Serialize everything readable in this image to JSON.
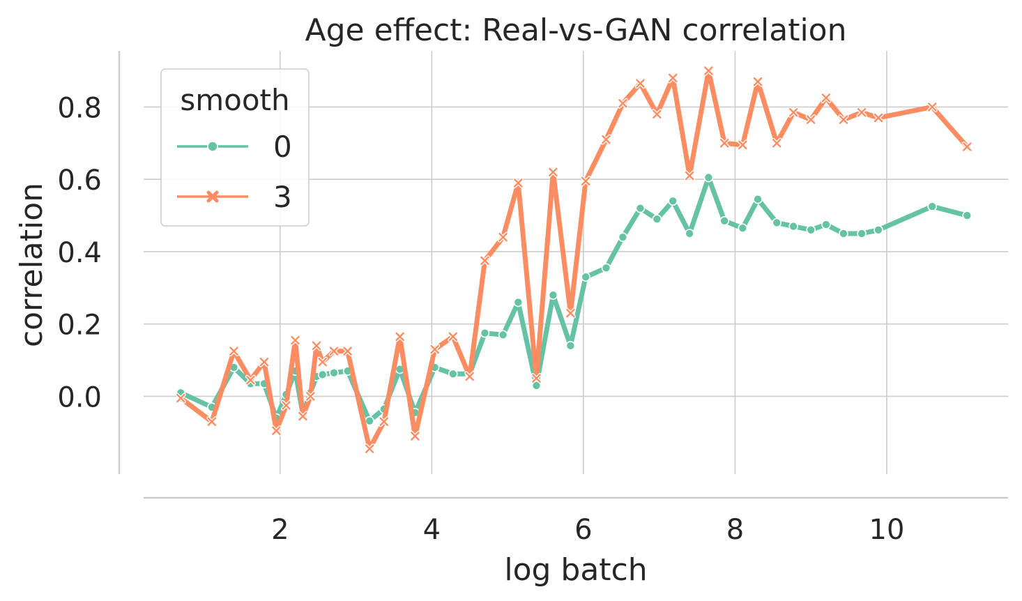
{
  "chart_data": {
    "type": "line",
    "title": "Age effect: Real-vs-GAN correlation",
    "xlabel": "log batch",
    "ylabel": "correlation",
    "xlim": [
      0.2,
      11.6
    ],
    "ylim": [
      -0.215,
      0.955
    ],
    "xticks": [
      2,
      4,
      6,
      8,
      10
    ],
    "yticks": [
      0.0,
      0.2,
      0.4,
      0.6,
      0.8
    ],
    "xtick_labels": [
      "2",
      "4",
      "6",
      "8",
      "10"
    ],
    "ytick_labels": [
      "0.0",
      "0.2",
      "0.4",
      "0.6",
      "0.8"
    ],
    "grid": true,
    "legend": {
      "title": "smooth",
      "placement": "top-left"
    },
    "series": [
      {
        "name": "0",
        "color": "#66c2a5",
        "marker": "circle",
        "x": [
          0.69,
          1.1,
          1.39,
          1.61,
          1.79,
          1.95,
          2.08,
          2.2,
          2.3,
          2.4,
          2.48,
          2.56,
          2.71,
          2.89,
          3.18,
          3.37,
          3.58,
          3.78,
          4.04,
          4.28,
          4.5,
          4.7,
          4.94,
          5.14,
          5.38,
          5.6,
          5.83,
          6.03,
          6.3,
          6.52,
          6.75,
          6.97,
          7.18,
          7.4,
          7.65,
          7.86,
          8.1,
          8.3,
          8.55,
          8.77,
          9.0,
          9.2,
          9.43,
          9.67,
          9.89,
          10.6,
          11.06
        ],
        "y": [
          0.01,
          -0.03,
          0.08,
          0.035,
          0.035,
          -0.06,
          0.005,
          0.07,
          -0.05,
          0.01,
          0.055,
          0.06,
          0.065,
          0.07,
          -0.068,
          -0.035,
          0.075,
          -0.045,
          0.08,
          0.062,
          0.062,
          0.175,
          0.17,
          0.26,
          0.03,
          0.28,
          0.14,
          0.33,
          0.355,
          0.44,
          0.52,
          0.49,
          0.54,
          0.45,
          0.605,
          0.485,
          0.465,
          0.545,
          0.48,
          0.47,
          0.46,
          0.475,
          0.45,
          0.45,
          0.46,
          0.525,
          0.5
        ]
      },
      {
        "name": "3",
        "color": "#fc8d62",
        "marker": "x",
        "x": [
          0.69,
          1.1,
          1.39,
          1.61,
          1.79,
          1.95,
          2.08,
          2.2,
          2.3,
          2.4,
          2.48,
          2.56,
          2.71,
          2.89,
          3.18,
          3.37,
          3.58,
          3.78,
          4.04,
          4.28,
          4.5,
          4.7,
          4.94,
          5.14,
          5.38,
          5.6,
          5.83,
          6.03,
          6.3,
          6.52,
          6.75,
          6.97,
          7.18,
          7.4,
          7.65,
          7.86,
          8.1,
          8.3,
          8.55,
          8.77,
          9.0,
          9.2,
          9.43,
          9.67,
          9.89,
          10.6,
          11.06
        ],
        "y": [
          -0.005,
          -0.07,
          0.125,
          0.045,
          0.095,
          -0.095,
          -0.025,
          0.155,
          -0.055,
          0.0,
          0.14,
          0.095,
          0.125,
          0.125,
          -0.145,
          -0.07,
          0.165,
          -0.11,
          0.13,
          0.165,
          0.055,
          0.375,
          0.44,
          0.59,
          0.05,
          0.62,
          0.23,
          0.595,
          0.71,
          0.81,
          0.865,
          0.78,
          0.88,
          0.61,
          0.9,
          0.7,
          0.695,
          0.87,
          0.7,
          0.785,
          0.765,
          0.825,
          0.765,
          0.785,
          0.77,
          0.8,
          0.69
        ]
      }
    ]
  }
}
